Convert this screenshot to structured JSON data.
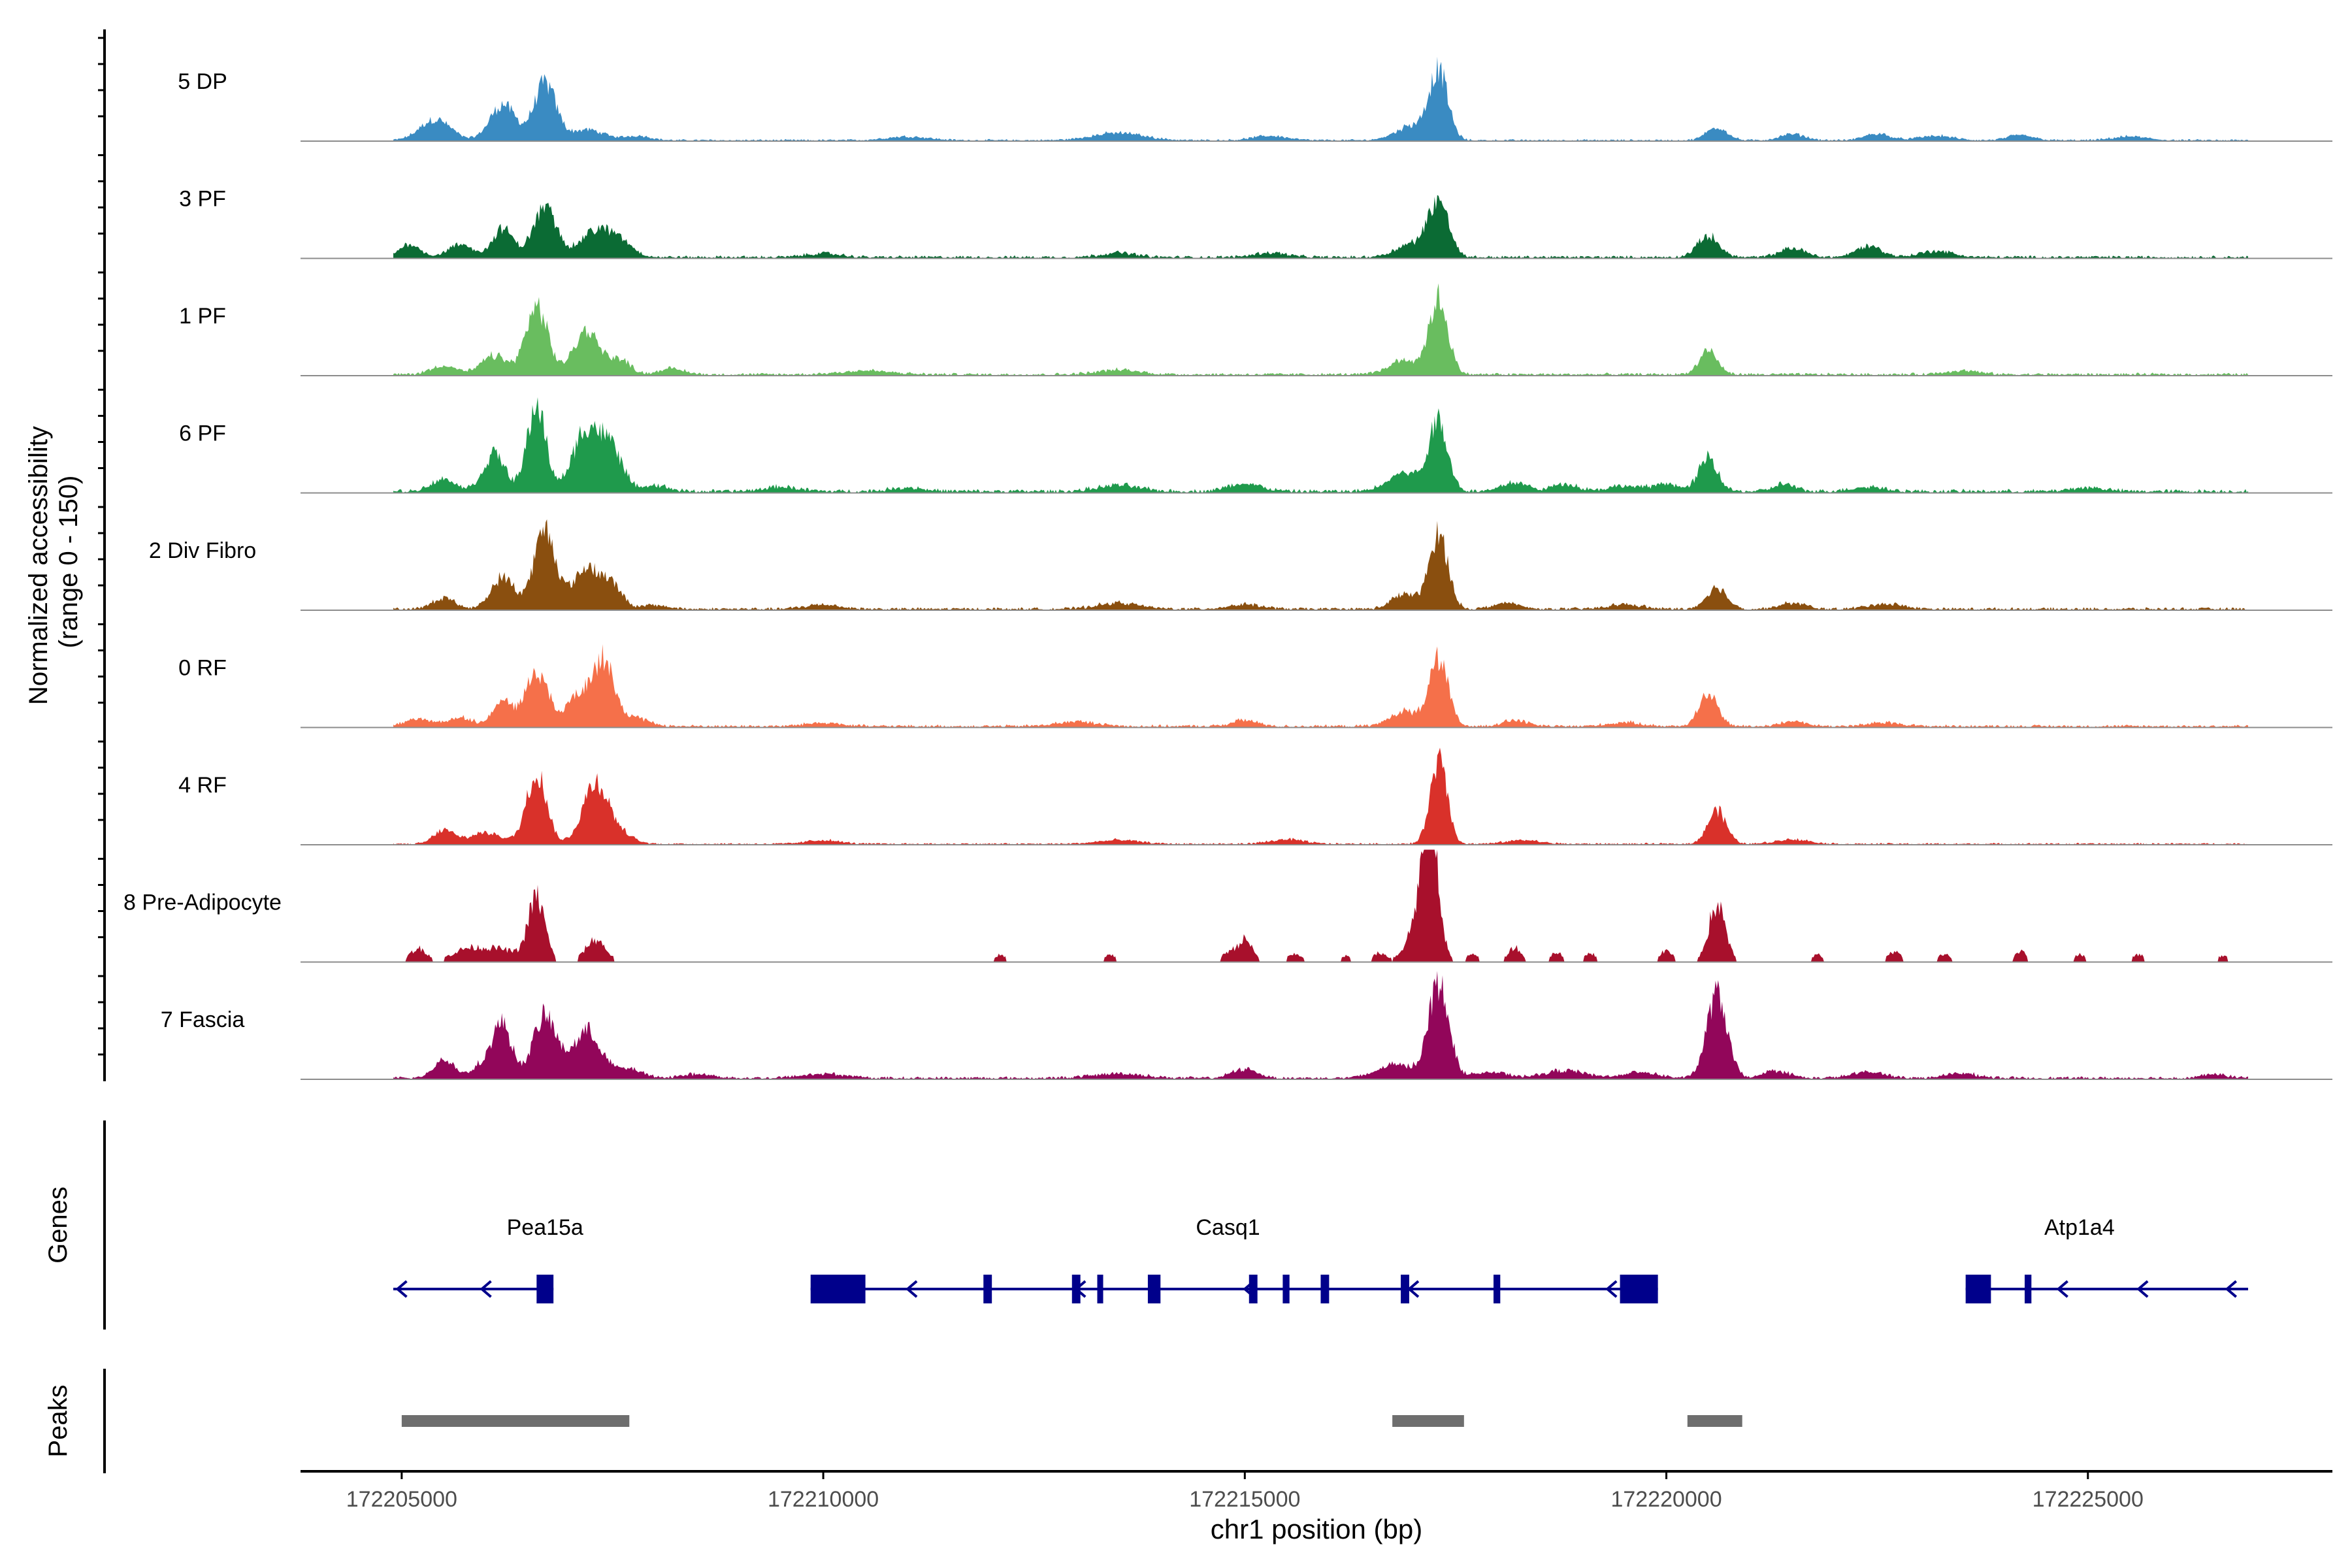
{
  "chart_data": {
    "type": "area",
    "region": {
      "chrom": "chr1",
      "start": 172203800,
      "end": 172227900
    },
    "xlabel": "chr1 position (bp)",
    "ylabel_line1": "Normalized accessibility",
    "ylabel_line2": "(range 0 - 150)",
    "ylim": [
      0,
      150
    ],
    "x_ticks": [
      172205000,
      172210000,
      172215000,
      172220000,
      172225000
    ],
    "x_tick_labels": [
      "172205000",
      "172210000",
      "172215000",
      "172220000",
      "172225000"
    ],
    "colors": {
      "5 DP": "#3a8bc2",
      "3 PF": "#0b6b34",
      "1 PF": "#69bd5f",
      "6 PF": "#1f9a4c",
      "2 Div Fibro": "#8a4f0f",
      "0 RF": "#f5704a",
      "4 RF": "#d9312a",
      "8 Pre-Adipocyte": "#a8102c",
      "7 Fascia": "#92065a",
      "gene": "#00008b",
      "peak": "#6e6e6e"
    },
    "series": [
      {
        "name": "5 DP",
        "bg": 2,
        "start": 172204900,
        "end": 172226900,
        "peaks": [
          [
            172205400,
            28,
            180
          ],
          [
            172206200,
            48,
            150
          ],
          [
            172206700,
            75,
            130
          ],
          [
            172207200,
            14,
            200
          ],
          [
            172207800,
            6,
            150
          ],
          [
            172211000,
            5,
            250
          ],
          [
            172213500,
            10,
            300
          ],
          [
            172215300,
            6,
            200
          ],
          [
            172217300,
            88,
            110
          ],
          [
            172217000,
            20,
            200
          ],
          [
            172220600,
            18,
            120
          ],
          [
            172221500,
            8,
            150
          ],
          [
            172222500,
            9,
            150
          ],
          [
            172223200,
            6,
            200
          ],
          [
            172224200,
            7,
            150
          ],
          [
            172225500,
            5,
            200
          ]
        ]
      },
      {
        "name": "3 PF",
        "bg": 3,
        "start": 172204900,
        "end": 172226900,
        "peaks": [
          [
            172205100,
            18,
            120
          ],
          [
            172205700,
            16,
            150
          ],
          [
            172206200,
            38,
            120
          ],
          [
            172206700,
            65,
            140
          ],
          [
            172207300,
            35,
            180
          ],
          [
            172207600,
            18,
            150
          ],
          [
            172210000,
            5,
            200
          ],
          [
            172213500,
            6,
            200
          ],
          [
            172215300,
            6,
            200
          ],
          [
            172217300,
            72,
            120
          ],
          [
            172217000,
            18,
            200
          ],
          [
            172220500,
            28,
            130
          ],
          [
            172221500,
            12,
            150
          ],
          [
            172222400,
            15,
            150
          ],
          [
            172223200,
            8,
            200
          ]
        ]
      },
      {
        "name": "1 PF",
        "bg": 3,
        "start": 172204900,
        "end": 172226900,
        "peaks": [
          [
            172205500,
            12,
            150
          ],
          [
            172206100,
            25,
            150
          ],
          [
            172206600,
            90,
            130
          ],
          [
            172207200,
            58,
            160
          ],
          [
            172207600,
            18,
            120
          ],
          [
            172208200,
            8,
            150
          ],
          [
            172210500,
            5,
            300
          ],
          [
            172213500,
            6,
            250
          ],
          [
            172216900,
            20,
            180
          ],
          [
            172217300,
            100,
            110
          ],
          [
            172220500,
            30,
            110
          ],
          [
            172223500,
            5,
            200
          ]
        ]
      },
      {
        "name": "6 PF",
        "bg": 4,
        "start": 172204900,
        "end": 172226900,
        "peaks": [
          [
            172205500,
            16,
            150
          ],
          [
            172206100,
            50,
            130
          ],
          [
            172206600,
            115,
            110
          ],
          [
            172207200,
            85,
            160
          ],
          [
            172207500,
            50,
            130
          ],
          [
            172208000,
            8,
            150
          ],
          [
            172209500,
            6,
            200
          ],
          [
            172211000,
            5,
            200
          ],
          [
            172213500,
            8,
            250
          ],
          [
            172215000,
            10,
            200
          ],
          [
            172216900,
            25,
            200
          ],
          [
            172217300,
            92,
            110
          ],
          [
            172218200,
            12,
            150
          ],
          [
            172218800,
            10,
            150
          ],
          [
            172219500,
            7,
            200
          ],
          [
            172220000,
            10,
            150
          ],
          [
            172220500,
            45,
            110
          ],
          [
            172221400,
            10,
            120
          ],
          [
            172222400,
            6,
            200
          ],
          [
            172225000,
            5,
            200
          ]
        ]
      },
      {
        "name": "2 Div Fibro",
        "bg": 3,
        "start": 172204900,
        "end": 172226900,
        "peaks": [
          [
            172205500,
            15,
            130
          ],
          [
            172206200,
            42,
            140
          ],
          [
            172206700,
            105,
            130
          ],
          [
            172207200,
            55,
            160
          ],
          [
            172207500,
            28,
            120
          ],
          [
            172208000,
            5,
            150
          ],
          [
            172210000,
            6,
            200
          ],
          [
            172213500,
            8,
            250
          ],
          [
            172215000,
            6,
            200
          ],
          [
            172216900,
            20,
            150
          ],
          [
            172217300,
            100,
            110
          ],
          [
            172218100,
            8,
            150
          ],
          [
            172219500,
            6,
            200
          ],
          [
            172220600,
            28,
            120
          ],
          [
            172221500,
            8,
            150
          ],
          [
            172222600,
            7,
            200
          ]
        ]
      },
      {
        "name": "0 RF",
        "bg": 3,
        "start": 172204900,
        "end": 172226900,
        "peaks": [
          [
            172205200,
            10,
            150
          ],
          [
            172205700,
            12,
            150
          ],
          [
            172206200,
            35,
            110
          ],
          [
            172206600,
            75,
            130
          ],
          [
            172207100,
            40,
            150
          ],
          [
            172207400,
            85,
            130
          ],
          [
            172207800,
            10,
            150
          ],
          [
            172210000,
            5,
            200
          ],
          [
            172213000,
            6,
            250
          ],
          [
            172215000,
            8,
            150
          ],
          [
            172216900,
            20,
            170
          ],
          [
            172217300,
            90,
            110
          ],
          [
            172218200,
            8,
            150
          ],
          [
            172219500,
            5,
            200
          ],
          [
            172220500,
            45,
            110
          ],
          [
            172221500,
            7,
            150
          ],
          [
            172222600,
            5,
            200
          ]
        ]
      },
      {
        "name": "4 RF",
        "bg": 2,
        "start": 172204900,
        "end": 172226900,
        "peaks": [
          [
            172205500,
            18,
            120
          ],
          [
            172206000,
            15,
            200
          ],
          [
            172206600,
            95,
            120
          ],
          [
            172207300,
            82,
            150
          ],
          [
            172207600,
            12,
            150
          ],
          [
            172210000,
            5,
            200
          ],
          [
            172213500,
            5,
            250
          ],
          [
            172215500,
            6,
            200
          ],
          [
            172217300,
            110,
            100
          ],
          [
            172218300,
            5,
            200
          ],
          [
            172220600,
            45,
            110
          ],
          [
            172221500,
            6,
            200
          ]
        ]
      },
      {
        "name": "8 Pre-Adipocyte",
        "bg": 0,
        "start": 172204900,
        "end": 172226900,
        "sparse": true,
        "peaks": [
          [
            172205200,
            18,
            100
          ],
          [
            172205800,
            18,
            200
          ],
          [
            172206200,
            15,
            180
          ],
          [
            172206600,
            85,
            100
          ],
          [
            172207300,
            30,
            120
          ],
          [
            172212100,
            10,
            70
          ],
          [
            172213400,
            10,
            70
          ],
          [
            172214800,
            12,
            70
          ],
          [
            172215000,
            30,
            90
          ],
          [
            172215600,
            10,
            100
          ],
          [
            172216200,
            8,
            70
          ],
          [
            172216600,
            12,
            80
          ],
          [
            172217200,
            160,
            90
          ],
          [
            172217100,
            60,
            150
          ],
          [
            172217700,
            12,
            70
          ],
          [
            172218200,
            20,
            80
          ],
          [
            172218700,
            14,
            70
          ],
          [
            172219100,
            12,
            70
          ],
          [
            172220000,
            15,
            80
          ],
          [
            172220600,
            75,
            100
          ],
          [
            172221800,
            10,
            70
          ],
          [
            172222700,
            14,
            80
          ],
          [
            172223300,
            10,
            80
          ],
          [
            172224200,
            14,
            70
          ],
          [
            172224900,
            10,
            70
          ],
          [
            172225600,
            10,
            70
          ],
          [
            172226600,
            8,
            70
          ]
        ]
      },
      {
        "name": "7 Fascia",
        "bg": 3,
        "start": 172204900,
        "end": 172226900,
        "peaks": [
          [
            172205500,
            25,
            120
          ],
          [
            172206000,
            20,
            150
          ],
          [
            172206200,
            65,
            110
          ],
          [
            172206700,
            82,
            140
          ],
          [
            172207200,
            62,
            170
          ],
          [
            172207700,
            12,
            150
          ],
          [
            172208500,
            5,
            200
          ],
          [
            172210000,
            6,
            250
          ],
          [
            172213500,
            6,
            300
          ],
          [
            172215000,
            12,
            150
          ],
          [
            172216800,
            18,
            220
          ],
          [
            172217300,
            125,
            120
          ],
          [
            172217900,
            8,
            200
          ],
          [
            172218800,
            10,
            250
          ],
          [
            172219700,
            8,
            200
          ],
          [
            172220600,
            112,
            120
          ],
          [
            172221300,
            10,
            150
          ],
          [
            172222400,
            8,
            200
          ],
          [
            172223500,
            6,
            200
          ],
          [
            172226500,
            5,
            150
          ]
        ]
      }
    ],
    "genes": [
      {
        "name": "Pea15a",
        "label_pos": 172206700,
        "start": 172204900,
        "end": 172206800,
        "strand": "-",
        "exons": [
          [
            172206600,
            172206800
          ]
        ],
        "arrows": [
          172204950,
          172205950
        ]
      },
      {
        "name": "Casq1",
        "label_pos": 172214800,
        "start": 172209850,
        "end": 172219900,
        "strand": "-",
        "exons": [
          [
            172209850,
            172210500
          ],
          [
            172211900,
            172212000
          ],
          [
            172212950,
            172213050
          ],
          [
            172213250,
            172213320
          ],
          [
            172213850,
            172214000
          ],
          [
            172215050,
            172215150
          ],
          [
            172215450,
            172215530
          ],
          [
            172215900,
            172216000
          ],
          [
            172216850,
            172216950
          ],
          [
            172217950,
            172218030
          ],
          [
            172219450,
            172219900
          ]
        ],
        "arrows": [
          172211000,
          172213000,
          172215000,
          172216950,
          172219300
        ]
      },
      {
        "name": "Atp1a4",
        "label_pos": 172224900,
        "start": 172223550,
        "end": 172226900,
        "strand": "-",
        "exons": [
          [
            172223550,
            172223850
          ],
          [
            172224250,
            172224330
          ]
        ],
        "arrows": [
          172224650,
          172225600,
          172226650
        ]
      }
    ],
    "peaks_track": [
      [
        172205000,
        172207700
      ],
      [
        172216750,
        172217600
      ],
      [
        172220250,
        172220900
      ]
    ],
    "gene_track_label": "Genes",
    "peak_track_label": "Peaks"
  }
}
